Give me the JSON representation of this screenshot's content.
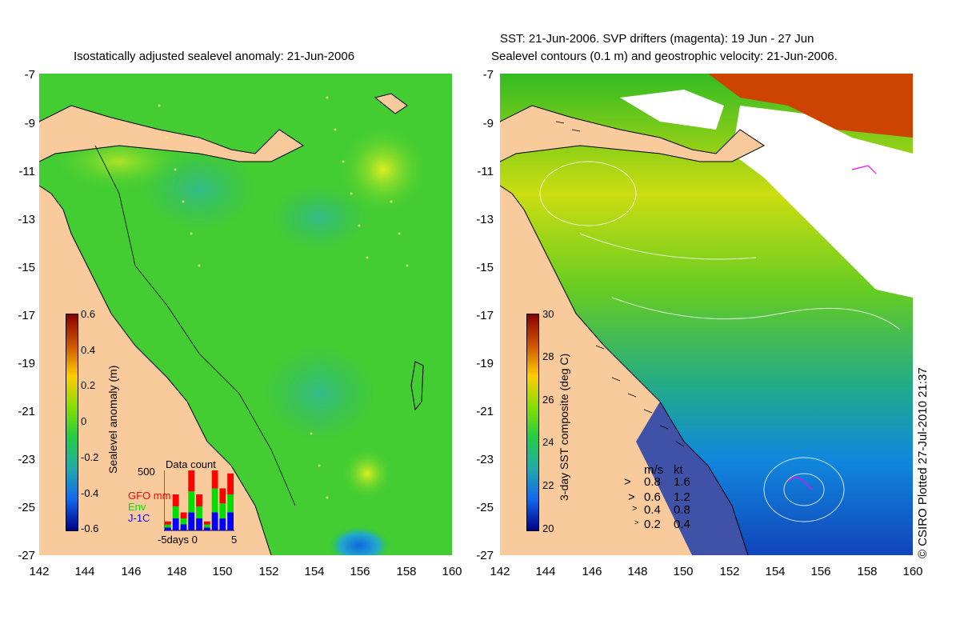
{
  "left_panel": {
    "title": "Isostatically adjusted sealevel anomaly: 21-Jun-2006",
    "colorbar": {
      "label": "Sealevel anomaly (m)",
      "ticks": [
        "0.6",
        "0.4",
        "0.2",
        "0",
        "-0.2",
        "-0.4",
        "-0.6"
      ]
    },
    "data_count": {
      "title": "Data count",
      "ymax_label": "500",
      "series_labels": {
        "gfo": "GFO mm",
        "env": "Env",
        "j1c": "J-1C"
      },
      "xaxis_label": "-5days 0",
      "x_end_label": "5",
      "colors": {
        "gfo": "#ff0000",
        "env": "#00dd00",
        "j1c": "#0000ff"
      },
      "bars": [
        {
          "gfo": 0.05,
          "env": 0.05,
          "j1c": 0.05
        },
        {
          "gfo": 0.2,
          "env": 0.2,
          "j1c": 0.2
        },
        {
          "gfo": 0.1,
          "env": 0.1,
          "j1c": 0.1
        },
        {
          "gfo": 0.35,
          "env": 0.35,
          "j1c": 0.3
        },
        {
          "gfo": 0.2,
          "env": 0.2,
          "j1c": 0.2
        },
        {
          "gfo": 0.05,
          "env": 0.05,
          "j1c": 0.05
        },
        {
          "gfo": 0.4,
          "env": 0.4,
          "j1c": 0.3
        },
        {
          "gfo": 0.25,
          "env": 0.25,
          "j1c": 0.2
        },
        {
          "gfo": 0.35,
          "env": 0.3,
          "j1c": 0.3
        }
      ]
    }
  },
  "right_panel": {
    "title_line1": "SST: 21-Jun-2006. SVP drifters (magenta): 19 Jun - 27 Jun",
    "title_line2": "Sealevel contours (0.1 m) and geostrophic velocity: 21-Jun-2006.",
    "colorbar": {
      "label": "3-day SST composite (deg C)",
      "ticks": [
        "30",
        "28",
        "26",
        "24",
        "22",
        "20"
      ]
    },
    "velocity_legend": {
      "header_ms": "m/s",
      "header_kt": "kt",
      "rows": [
        {
          "ms": "0.8",
          "kt": "1.6"
        },
        {
          "ms": "0.6",
          "kt": "1.2"
        },
        {
          "ms": "0.4",
          "kt": "0.8"
        },
        {
          "ms": "0.2",
          "kt": "0.4"
        }
      ]
    }
  },
  "axes": {
    "y_ticks": [
      "-7",
      "-9",
      "-11",
      "-13",
      "-15",
      "-17",
      "-19",
      "-21",
      "-23",
      "-25",
      "-27"
    ],
    "x_ticks": [
      "142",
      "144",
      "146",
      "148",
      "150",
      "152",
      "154",
      "156",
      "158",
      "160"
    ],
    "lon_range": [
      142,
      160
    ],
    "lat_range": [
      -27,
      -7
    ]
  },
  "credit": "© CSIRO Plotted 27-Jul-2010 21:37",
  "colors": {
    "land": "#f9cb9c",
    "ocean_green": "#33cc33",
    "anomaly_high": "#ccee22",
    "anomaly_low": "#22bb88",
    "sst_cold": "#1133aa",
    "sst_warm": "#cc4400",
    "cloud": "#ffffff"
  }
}
